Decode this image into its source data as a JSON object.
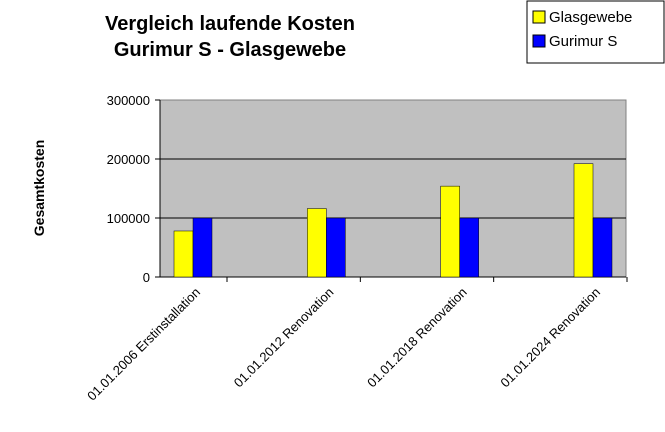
{
  "chart_data": {
    "type": "bar",
    "title": [
      "Vergleich laufende Kosten",
      "Gurimur S - Glasgewebe"
    ],
    "y_label": "Gesamtkosten",
    "categories": [
      "01.01.2006 Erstinstallation",
      "01.01.2012 Renovation",
      "01.01.2018 Renovation",
      "01.01.2024 Renovation"
    ],
    "series": [
      {
        "name": "Glasgewebe",
        "color": "#ffff00",
        "values": [
          78000,
          116000,
          154000,
          192000
        ]
      },
      {
        "name": "Gurimur S",
        "color": "#0000ff",
        "values": [
          100000,
          100000,
          100000,
          100000
        ]
      }
    ],
    "ylim": [
      0,
      300000
    ],
    "yticks": [
      0,
      100000,
      200000,
      300000
    ],
    "grid": true,
    "legend": "top-right"
  }
}
